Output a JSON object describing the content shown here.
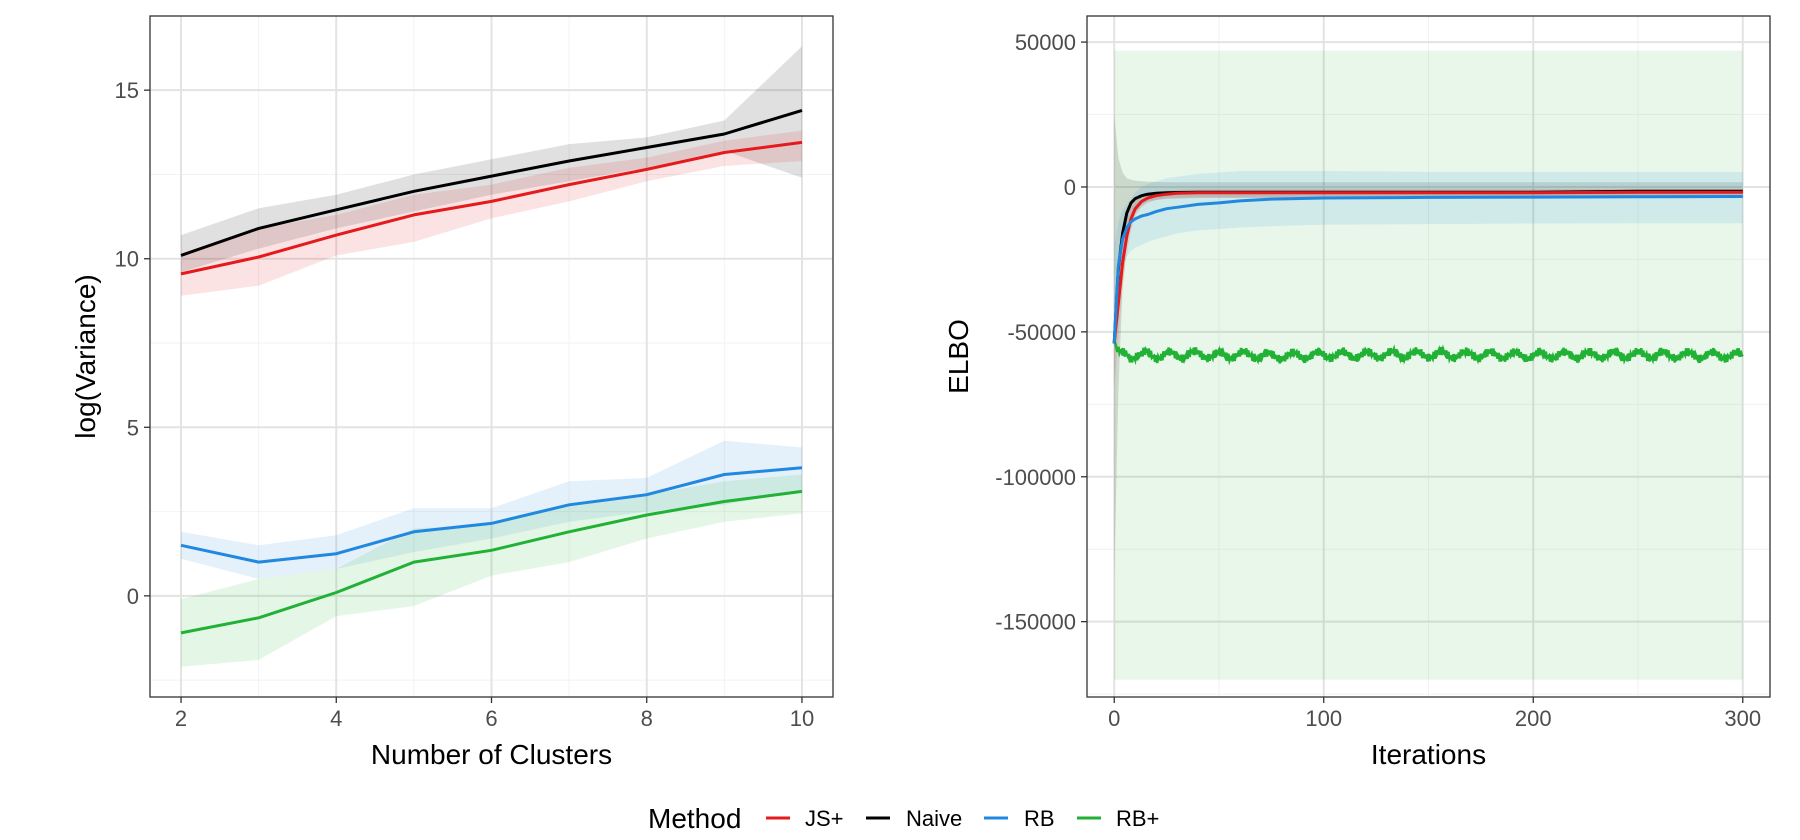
{
  "chart_data": [
    {
      "type": "line",
      "xlabel": "Number of Clusters",
      "ylabel": "log(Variance)",
      "xlim": [
        1.6,
        10.4
      ],
      "ylim": [
        -3,
        17.2
      ],
      "x_ticks": [
        2,
        4,
        6,
        8,
        10
      ],
      "y_ticks": [
        0,
        5,
        10,
        15
      ],
      "grid": true,
      "x": [
        2,
        3,
        4,
        5,
        6,
        7,
        8,
        9,
        10
      ],
      "series": [
        {
          "name": "Naive",
          "color": "#000000",
          "values": [
            10.1,
            10.9,
            11.45,
            12.0,
            12.45,
            12.9,
            13.3,
            13.7,
            14.4
          ],
          "lower": [
            9.6,
            10.3,
            10.9,
            11.4,
            11.9,
            12.3,
            12.7,
            13.2,
            12.4
          ],
          "upper": [
            10.7,
            11.5,
            11.9,
            12.5,
            12.95,
            13.4,
            13.6,
            14.1,
            16.3
          ]
        },
        {
          "name": "JS+",
          "color": "#e41a1c",
          "values": [
            9.55,
            10.05,
            10.7,
            11.3,
            11.7,
            12.2,
            12.65,
            13.15,
            13.45
          ],
          "lower": [
            8.9,
            9.2,
            10.1,
            10.5,
            11.2,
            11.7,
            12.3,
            12.75,
            12.9
          ],
          "upper": [
            10.1,
            10.9,
            11.3,
            11.9,
            12.2,
            12.7,
            13.0,
            13.5,
            13.8
          ]
        },
        {
          "name": "RB",
          "color": "#2188e0",
          "values": [
            1.5,
            1.0,
            1.25,
            1.9,
            2.15,
            2.7,
            3.0,
            3.6,
            3.8
          ],
          "lower": [
            1.1,
            0.5,
            0.8,
            1.3,
            1.7,
            2.2,
            2.5,
            2.7,
            3.1
          ],
          "upper": [
            1.9,
            1.5,
            1.8,
            2.6,
            2.6,
            3.4,
            3.5,
            4.6,
            4.4
          ]
        },
        {
          "name": "RB+",
          "color": "#21b135",
          "values": [
            -1.1,
            -0.65,
            0.1,
            1.0,
            1.35,
            1.9,
            2.4,
            2.8,
            3.1
          ],
          "lower": [
            -2.1,
            -1.9,
            -0.6,
            -0.3,
            0.6,
            1.0,
            1.7,
            2.2,
            2.45
          ],
          "upper": [
            -0.1,
            0.5,
            0.8,
            2.0,
            2.1,
            2.7,
            3.0,
            3.4,
            3.6
          ]
        }
      ]
    },
    {
      "type": "line",
      "xlabel": "Iterations",
      "ylabel": "ELBO",
      "xlim": [
        -13,
        313
      ],
      "ylim": [
        -176000,
        59000
      ],
      "x_ticks": [
        0,
        100,
        200,
        300
      ],
      "y_ticks": [
        50000,
        0,
        -50000,
        -100000,
        -150000
      ],
      "y_tick_labels": [
        "50000",
        "0",
        "-50000",
        "-100000",
        "-150000"
      ],
      "grid": true,
      "x": [
        0,
        2,
        4,
        6,
        8,
        10,
        13,
        16,
        20,
        25,
        30,
        40,
        50,
        60,
        75,
        100,
        150,
        200,
        250,
        300
      ],
      "series": [
        {
          "name": "Naive",
          "color": "#000000",
          "values": [
            -54000,
            -28000,
            -16000,
            -9000,
            -5500,
            -4000,
            -3000,
            -2500,
            -2200,
            -2000,
            -1900,
            -1800,
            -1800,
            -1800,
            -1800,
            -1800,
            -1800,
            -1800,
            -1500,
            -1500
          ],
          "lower": [
            -135000,
            -70000,
            -35000,
            -20000,
            -13000,
            -9000,
            -6500,
            -5000,
            -4500,
            -4000,
            -4000,
            -3800,
            -3800,
            -3800,
            -3800,
            -3800,
            -3800,
            -3800,
            -3600,
            -3600
          ],
          "upper": [
            25000,
            10000,
            5000,
            3000,
            2500,
            2200,
            2000,
            1800,
            1700,
            1600,
            1600,
            1600,
            1600,
            1600,
            1600,
            1600,
            1600,
            1600,
            1600,
            1600
          ]
        },
        {
          "name": "JS+",
          "color": "#e41a1c",
          "values": [
            -54000,
            -40000,
            -26000,
            -17000,
            -11000,
            -7500,
            -5000,
            -3800,
            -3000,
            -2500,
            -2200,
            -2000,
            -2000,
            -2000,
            -2000,
            -2000,
            -2000,
            -2000,
            -1800,
            -1800
          ],
          "lower": [
            -70000,
            -52000,
            -34000,
            -23000,
            -15000,
            -10000,
            -7000,
            -5500,
            -4500,
            -4000,
            -3800,
            -3600,
            -3600,
            -3600,
            -3600,
            -3600,
            -3600,
            -3600,
            -3500,
            -3500
          ],
          "upper": [
            -38000,
            -28000,
            -18000,
            -11000,
            -7000,
            -5000,
            -3500,
            -2500,
            -1800,
            -1200,
            -1000,
            -800,
            -800,
            -800,
            -800,
            -800,
            -800,
            -800,
            -700,
            -700
          ]
        },
        {
          "name": "RB",
          "color": "#2188e0",
          "values": [
            -54000,
            -27000,
            -18000,
            -14000,
            -12000,
            -11000,
            -10000,
            -9500,
            -8500,
            -7500,
            -7000,
            -6000,
            -5500,
            -4800,
            -4200,
            -3800,
            -3600,
            -3500,
            -3400,
            -3300
          ],
          "lower": [
            -64000,
            -38000,
            -28000,
            -24000,
            -22000,
            -21000,
            -20000,
            -19000,
            -18000,
            -17000,
            -16000,
            -15000,
            -14500,
            -14000,
            -13500,
            -13000,
            -12800,
            -12600,
            -12500,
            -12500
          ],
          "upper": [
            -20000,
            -12000,
            -8000,
            -6000,
            -4000,
            -2000,
            0,
            1000,
            2000,
            3000,
            3500,
            4500,
            5000,
            5500,
            5500,
            5500,
            5200,
            5200,
            5200,
            5200
          ]
        },
        {
          "name": "RB+",
          "color": "#21b135",
          "values": [
            -53000,
            -57500,
            -58000,
            -57500,
            -58500,
            -57800,
            -58200,
            -57600,
            -58300,
            -57900,
            -58100,
            -57700,
            -58200,
            -57800,
            -58400,
            -58000,
            -57800,
            -58100,
            -57900,
            -58200
          ],
          "lower": [
            -170000,
            -170000,
            -170000,
            -170000,
            -170000,
            -170000,
            -170000,
            -170000,
            -170000,
            -170000,
            -170000,
            -170000,
            -170000,
            -170000,
            -170000,
            -170000,
            -170000,
            -170000,
            -170000,
            -170000
          ],
          "upper": [
            47000,
            47000,
            47000,
            47000,
            47000,
            47000,
            47000,
            47000,
            47000,
            47000,
            47000,
            47000,
            47000,
            47000,
            47000,
            47000,
            47000,
            47000,
            47000,
            47000
          ]
        }
      ]
    }
  ],
  "legend": {
    "title": "Method",
    "placement": "bottom",
    "items": [
      {
        "label": "JS+",
        "color": "#e41a1c"
      },
      {
        "label": "Naive",
        "color": "#000000"
      },
      {
        "label": "RB",
        "color": "#2188e0"
      },
      {
        "label": "RB+",
        "color": "#21b135"
      }
    ]
  }
}
